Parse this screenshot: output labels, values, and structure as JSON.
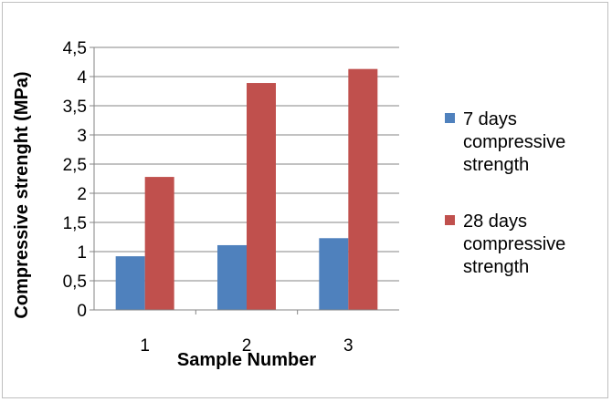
{
  "chart_data": {
    "type": "bar",
    "categories": [
      "1",
      "2",
      "3"
    ],
    "series": [
      {
        "name": "7 days compressive strength",
        "name_lines": [
          "7 days",
          "compressive",
          "strength"
        ],
        "color": "#4f81bd",
        "values": [
          0.92,
          1.11,
          1.23
        ]
      },
      {
        "name": "28 days compressive strength",
        "name_lines": [
          "28 days",
          "compressive",
          "strength"
        ],
        "color": "#c0504d",
        "values": [
          2.28,
          3.89,
          4.13
        ]
      }
    ],
    "xlabel": "Sample Number",
    "ylabel": "Compressive strenght (MPa)",
    "ylim": [
      0,
      4.5
    ],
    "yticks": [
      "0",
      "0,5",
      "1",
      "1,5",
      "2",
      "2,5",
      "3",
      "3,5",
      "4",
      "4,5"
    ],
    "grid": true,
    "legend_position": "right"
  }
}
